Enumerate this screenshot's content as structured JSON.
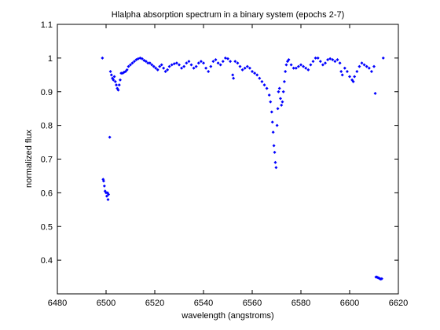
{
  "chart_data": {
    "type": "scatter",
    "title": "Hlalpha absorption spectrum in a binary system (epochs 2-7)",
    "x_label": "wavelength (angstroms)",
    "y_label": "normalized flux",
    "xlim": [
      6480,
      6620
    ],
    "ylim": [
      0.3,
      1.1
    ],
    "xticks": [
      6480,
      6500,
      6520,
      6540,
      6560,
      6580,
      6600,
      6620
    ],
    "yticks": [
      0.4,
      0.5,
      0.6,
      0.7,
      0.8,
      0.9,
      1,
      1.1
    ],
    "grid": false,
    "series": [
      {
        "color": "#0000ff",
        "x": [
          6498.5,
          6498.8,
          6499,
          6499.3,
          6499.6,
          6500,
          6500.3,
          6500.6,
          6500.8,
          6501,
          6501.5,
          6501.8,
          6502.2,
          6502.6,
          6503,
          6503.4,
          6503.8,
          6504.2,
          6504.6,
          6505,
          6505.4,
          6505.8,
          6506.2,
          6506.8,
          6507.4,
          6508,
          6508.6,
          6509.2,
          6510,
          6510.8,
          6511.6,
          6512.4,
          6513.2,
          6514,
          6514.8,
          6515.6,
          6516.4,
          6517.2,
          6518,
          6518.8,
          6519.6,
          6520.4,
          6521.2,
          6522,
          6522.8,
          6523.6,
          6524.4,
          6525.2,
          6526,
          6527,
          6528,
          6529,
          6530,
          6531,
          6532,
          6533,
          6534,
          6535,
          6536,
          6537,
          6538,
          6539,
          6540,
          6541,
          6542,
          6543,
          6544,
          6545,
          6546,
          6547,
          6548,
          6549,
          6550,
          6551,
          6552,
          6552.3,
          6553,
          6554,
          6555,
          6556,
          6557,
          6558,
          6559,
          6560,
          6561,
          6562,
          6563,
          6564,
          6565,
          6566,
          6567,
          6567.5,
          6568,
          6568.3,
          6568.6,
          6568.9,
          6569.2,
          6569.5,
          6569.8,
          6570.2,
          6570.5,
          6570.8,
          6571.2,
          6571.6,
          6572,
          6572.4,
          6572.8,
          6573.2,
          6573.6,
          6574,
          6574.5,
          6575,
          6576,
          6577,
          6578,
          6579,
          6580,
          6581,
          6582,
          6583,
          6584,
          6585,
          6586,
          6587,
          6588,
          6589,
          6590,
          6591,
          6592,
          6593,
          6594,
          6595,
          6596,
          6596.5,
          6597,
          6598,
          6599,
          6600,
          6601,
          6601.5,
          6602,
          6603,
          6604,
          6605,
          6606,
          6607,
          6608,
          6609,
          6610,
          6610.5,
          6610.8,
          6611.2,
          6611.6,
          6612,
          6612.4,
          6612.8,
          6613.2,
          6613.8
        ],
        "values": [
          1.0,
          0.64,
          0.635,
          0.62,
          0.605,
          0.6,
          0.59,
          0.6,
          0.58,
          0.595,
          0.765,
          0.96,
          0.95,
          0.94,
          0.935,
          0.945,
          0.93,
          0.92,
          0.91,
          0.905,
          0.92,
          0.935,
          0.955,
          0.955,
          0.958,
          0.96,
          0.965,
          0.975,
          0.98,
          0.985,
          0.99,
          0.995,
          0.998,
          1.0,
          0.998,
          0.993,
          0.99,
          0.985,
          0.985,
          0.98,
          0.975,
          0.97,
          0.965,
          0.975,
          0.98,
          0.97,
          0.96,
          0.965,
          0.975,
          0.98,
          0.983,
          0.985,
          0.98,
          0.97,
          0.975,
          0.985,
          0.99,
          0.98,
          0.97,
          0.975,
          0.985,
          0.99,
          0.985,
          0.97,
          0.96,
          0.975,
          0.99,
          0.995,
          0.985,
          0.98,
          0.99,
          1.0,
          0.998,
          0.99,
          0.95,
          0.94,
          0.99,
          0.985,
          0.975,
          0.965,
          0.97,
          0.975,
          0.97,
          0.96,
          0.955,
          0.95,
          0.94,
          0.93,
          0.92,
          0.91,
          0.89,
          0.87,
          0.84,
          0.81,
          0.78,
          0.74,
          0.72,
          0.69,
          0.675,
          0.8,
          0.85,
          0.9,
          0.91,
          0.88,
          0.86,
          0.87,
          0.9,
          0.93,
          0.96,
          0.98,
          0.99,
          0.995,
          0.98,
          0.97,
          0.97,
          0.975,
          0.98,
          0.975,
          0.97,
          0.965,
          0.98,
          0.99,
          1.0,
          1.0,
          0.99,
          0.98,
          0.985,
          0.995,
          0.998,
          0.995,
          0.99,
          0.995,
          0.985,
          0.96,
          0.95,
          0.97,
          0.96,
          0.945,
          0.935,
          0.93,
          0.945,
          0.96,
          0.975,
          0.985,
          0.98,
          0.975,
          0.97,
          0.96,
          0.975,
          0.895,
          0.35,
          0.35,
          0.348,
          0.347,
          0.345,
          0.344,
          0.345,
          1.0
        ]
      }
    ]
  }
}
